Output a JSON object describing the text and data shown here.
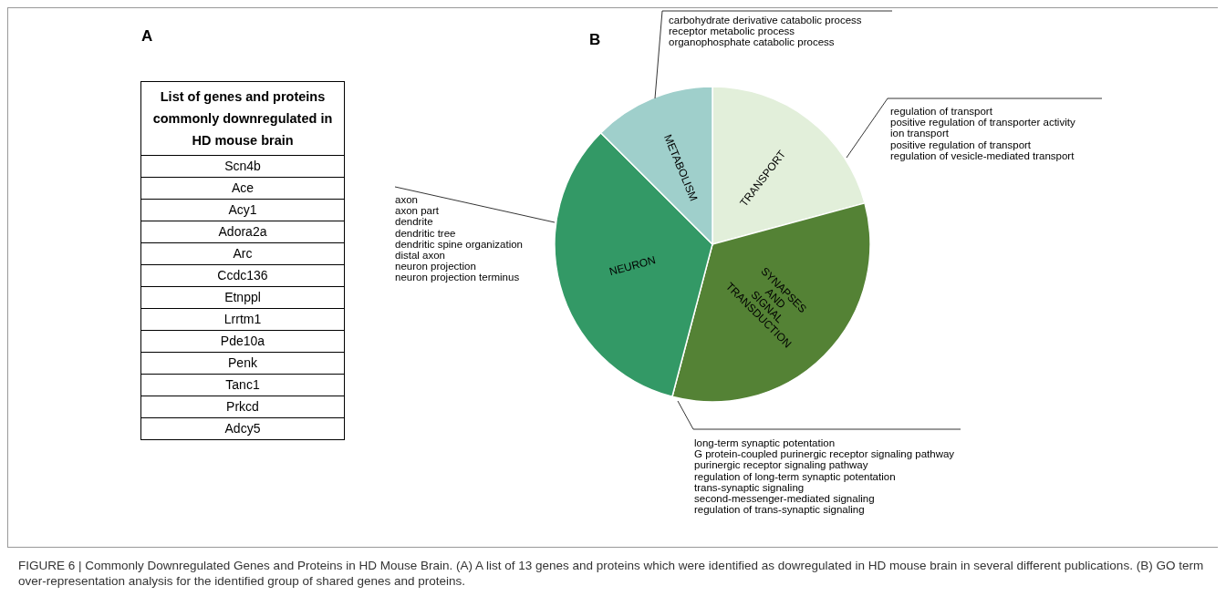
{
  "chart_data": [
    {
      "type": "other",
      "title": "A",
      "subtitle": "List of genes and proteins commonly downregulated in HD mouse brain",
      "categories": [
        "Scn4b",
        "Ace",
        "Acy1",
        "Adora2a",
        "Arc",
        "Ccdc136",
        "Etnppl",
        "Lrrtm1",
        "Pde10a",
        "Penk",
        "Tanc1",
        "Prkcd",
        "Adcy5"
      ]
    },
    {
      "type": "pie",
      "title": "B",
      "categories": [
        "TRANSPORT",
        "SYNAPSES AND SIGNAL TRANSDUCTION",
        "NEURON",
        "METABOLISM"
      ],
      "values": [
        20.8,
        33.3,
        33.4,
        12.5
      ],
      "colors": [
        "#e2efda",
        "#548235",
        "#339966",
        "#9fcfcb"
      ],
      "annotations": [
        "regulation of transport\npositive regulation of transporter activity\nion transport\npositive regulation of transport\nregulation of vesicle-mediated transport",
        "long-term synaptic potentation\nG protein-coupled purinergic receptor signaling pathway\npurinergic receptor signaling pathway\nregulation of long-term synaptic potentation\ntrans-synaptic signaling\nsecond-messenger-mediated signaling\nregulation of trans-synaptic signaling",
        "axon\naxon part\ndendrite\ndendritic tree\ndendritic spine organization\ndistal axon\nneuron projection\nneuron projection terminus",
        "carbohydrate derivative catabolic process\nreceptor metabolic process\norganophosphate catabolic process",
        "FIGURE 6 | Commonly Downregulated Genes and Proteins in HD Mouse Brain. (A) A list of 13 genes and proteins which were identified as dowregulated in HD mouse brain in several different publications. (B) GO term over-representation analysis for the identified group of shared genes and proteins."
      ]
    }
  ]
}
